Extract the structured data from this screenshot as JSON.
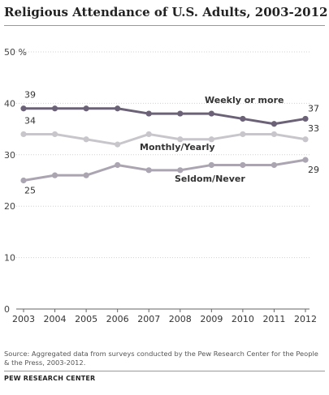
{
  "title": "Religious Attendance of U.S. Adults, 2003-2012",
  "source": "Source: Aggregated data from surveys conducted by the Pew Research Center for the People & the Press, 2003-2012.",
  "credit": "PEW RESEARCH CENTER",
  "colors": {
    "weekly": "#6b6277",
    "monthly": "#c8c6cb",
    "seldom": "#aba5b2",
    "grid": "#d0d0d0"
  },
  "chart_data": {
    "type": "line",
    "title": "Religious Attendance of U.S. Adults, 2003-2012",
    "x": [
      "2003",
      "2004",
      "2005",
      "2006",
      "2007",
      "2008",
      "2009",
      "2010",
      "2011",
      "2012"
    ],
    "ylim": [
      0,
      50
    ],
    "y_ticks": [
      "0",
      "10",
      "20",
      "30",
      "40",
      "50 %"
    ],
    "grid": true,
    "series": [
      {
        "name": "Weekly or more",
        "values": [
          39,
          39,
          39,
          39,
          38,
          38,
          38,
          37,
          36,
          37
        ],
        "start_label": "39",
        "end_label": "37"
      },
      {
        "name": "Monthly/Yearly",
        "values": [
          34,
          34,
          33,
          32,
          34,
          33,
          33,
          34,
          34,
          33
        ],
        "start_label": "34",
        "end_label": "33"
      },
      {
        "name": "Seldom/Never",
        "values": [
          25,
          26,
          26,
          28,
          27,
          27,
          28,
          28,
          28,
          29
        ],
        "start_label": "25",
        "end_label": "29"
      }
    ]
  }
}
